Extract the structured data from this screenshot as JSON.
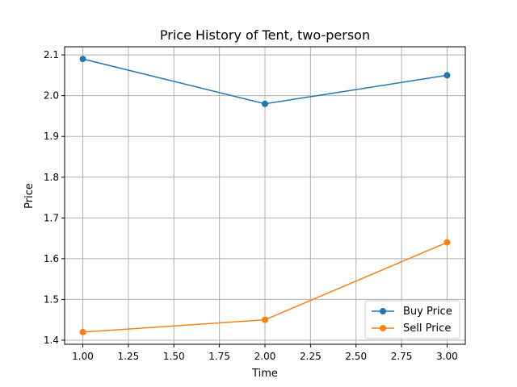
{
  "chart_data": {
    "type": "line",
    "title": "Price History of Tent, two-person",
    "xlabel": "Time",
    "ylabel": "Price",
    "xlim": [
      0.9,
      3.1
    ],
    "ylim": [
      1.39,
      2.12
    ],
    "x_ticks": [
      1.0,
      1.25,
      1.5,
      1.75,
      2.0,
      2.25,
      2.5,
      2.75,
      3.0
    ],
    "x_tick_labels": [
      "1.00",
      "1.25",
      "1.50",
      "1.75",
      "2.00",
      "2.25",
      "2.50",
      "2.75",
      "3.00"
    ],
    "y_ticks": [
      1.4,
      1.5,
      1.6,
      1.7,
      1.8,
      1.9,
      2.0,
      2.1
    ],
    "y_tick_labels": [
      "1.4",
      "1.5",
      "1.6",
      "1.7",
      "1.8",
      "1.9",
      "2.0",
      "2.1"
    ],
    "grid": true,
    "legend_position": "bottom-right",
    "x": [
      1,
      2,
      3
    ],
    "series": [
      {
        "name": "Buy Price",
        "values": [
          2.09,
          1.98,
          2.05
        ],
        "color": "#1f77b4"
      },
      {
        "name": "Sell Price",
        "values": [
          1.42,
          1.45,
          1.64
        ],
        "color": "#ff7f0e"
      }
    ]
  }
}
